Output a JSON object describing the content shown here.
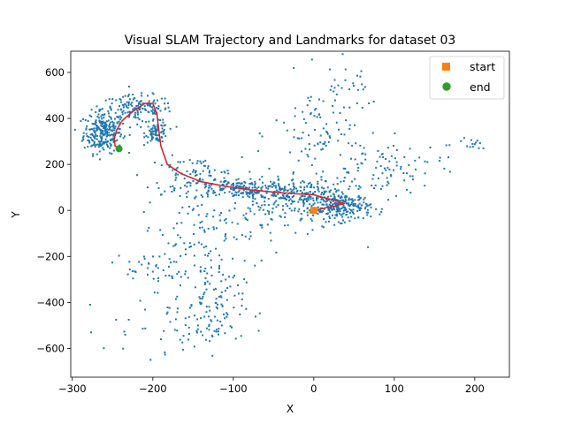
{
  "chart_data": {
    "type": "scatter",
    "title": "Visual SLAM Trajectory and Landmarks for dataset 03",
    "xlabel": "X",
    "ylabel": "Y",
    "xlim": [
      -302,
      243
    ],
    "ylim": [
      -725,
      692
    ],
    "xticks": [
      -300,
      -200,
      -100,
      0,
      100,
      200
    ],
    "yticks": [
      -600,
      -400,
      -200,
      0,
      200,
      400,
      600
    ],
    "xtick_labels": [
      "−300",
      "−200",
      "−100",
      "0",
      "100",
      "200"
    ],
    "ytick_labels": [
      "−600",
      "−400",
      "−200",
      "0",
      "200",
      "400",
      "600"
    ],
    "grid": false,
    "legend_position": "top-right",
    "colors": {
      "landmarks": "#1f77b4",
      "trajectory": "#d62728",
      "start": "#ff7f0e",
      "end": "#2ca02c"
    },
    "series": [
      {
        "kind": "trajectory-line",
        "x": [
          0,
          10,
          25,
          38,
          25,
          10,
          0,
          -20,
          -50,
          -80,
          -110,
          -140,
          -165,
          -182,
          -190,
          -193,
          -195,
          -200,
          -210,
          -225,
          -238,
          -245,
          -248,
          -247,
          -242
        ],
        "y": [
          -2,
          8,
          18,
          30,
          45,
          58,
          68,
          72,
          80,
          90,
          105,
          125,
          160,
          200,
          280,
          360,
          420,
          465,
          465,
          430,
          390,
          350,
          310,
          280,
          268
        ]
      },
      {
        "name": "start",
        "kind": "marker-square",
        "x": [
          0
        ],
        "y": [
          0
        ]
      },
      {
        "name": "end",
        "kind": "marker-circle",
        "x": [
          -242
        ],
        "y": [
          268
        ]
      },
      {
        "kind": "landmark-clusters",
        "clusters": [
          {
            "cx": -262,
            "cy": 340,
            "sx": 12,
            "sy": 45,
            "n": 260
          },
          {
            "cx": -220,
            "cy": 440,
            "sx": 22,
            "sy": 30,
            "n": 160
          },
          {
            "cx": -195,
            "cy": 340,
            "sx": 7,
            "sy": 22,
            "n": 80
          },
          {
            "cx": -150,
            "cy": 150,
            "sx": 30,
            "sy": 40,
            "n": 90
          },
          {
            "cx": -90,
            "cy": 95,
            "sx": 40,
            "sy": 22,
            "n": 180
          },
          {
            "cx": -20,
            "cy": 60,
            "sx": 35,
            "sy": 40,
            "n": 240
          },
          {
            "cx": 35,
            "cy": 15,
            "sx": 18,
            "sy": 30,
            "n": 220
          },
          {
            "cx": 10,
            "cy": 330,
            "sx": 30,
            "sy": 120,
            "n": 100
          },
          {
            "cx": 90,
            "cy": 180,
            "sx": 35,
            "sy": 60,
            "n": 90
          },
          {
            "cx": -140,
            "cy": -90,
            "sx": 40,
            "sy": 70,
            "n": 70
          },
          {
            "cx": -130,
            "cy": -420,
            "sx": 22,
            "sy": 100,
            "n": 120
          },
          {
            "cx": -180,
            "cy": -520,
            "sx": 40,
            "sy": 60,
            "n": 40
          },
          {
            "cx": -185,
            "cy": -250,
            "sx": 25,
            "sy": 45,
            "n": 50
          },
          {
            "cx": 185,
            "cy": 290,
            "sx": 20,
            "sy": 20,
            "n": 15
          },
          {
            "cx": 40,
            "cy": 560,
            "sx": 25,
            "sy": 50,
            "n": 20
          },
          {
            "cx": -60,
            "cy": -30,
            "sx": 45,
            "sy": 60,
            "n": 60
          }
        ]
      }
    ],
    "legend": [
      {
        "label": "start",
        "marker": "square",
        "color": "#ff7f0e"
      },
      {
        "label": "end",
        "marker": "circle",
        "color": "#2ca02c"
      }
    ]
  }
}
